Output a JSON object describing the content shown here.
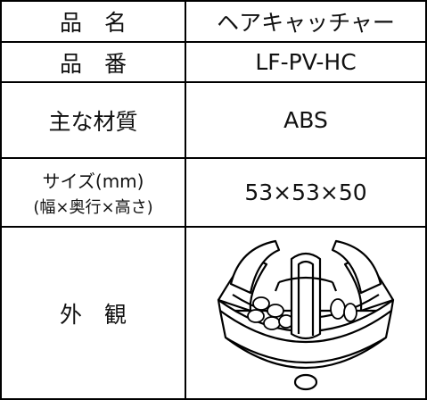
{
  "table": {
    "rows": [
      {
        "label": "品　名",
        "value": "ヘアキャッチャー"
      },
      {
        "label": "品　番",
        "value": "LF-PV-HC"
      },
      {
        "label": "主な材質",
        "value": "ABS"
      },
      {
        "label": [
          "サイズ(mm)",
          "(幅×奥行×高さ)"
        ],
        "value": "53×53×50"
      },
      {
        "label": "外　観"
      }
    ]
  }
}
